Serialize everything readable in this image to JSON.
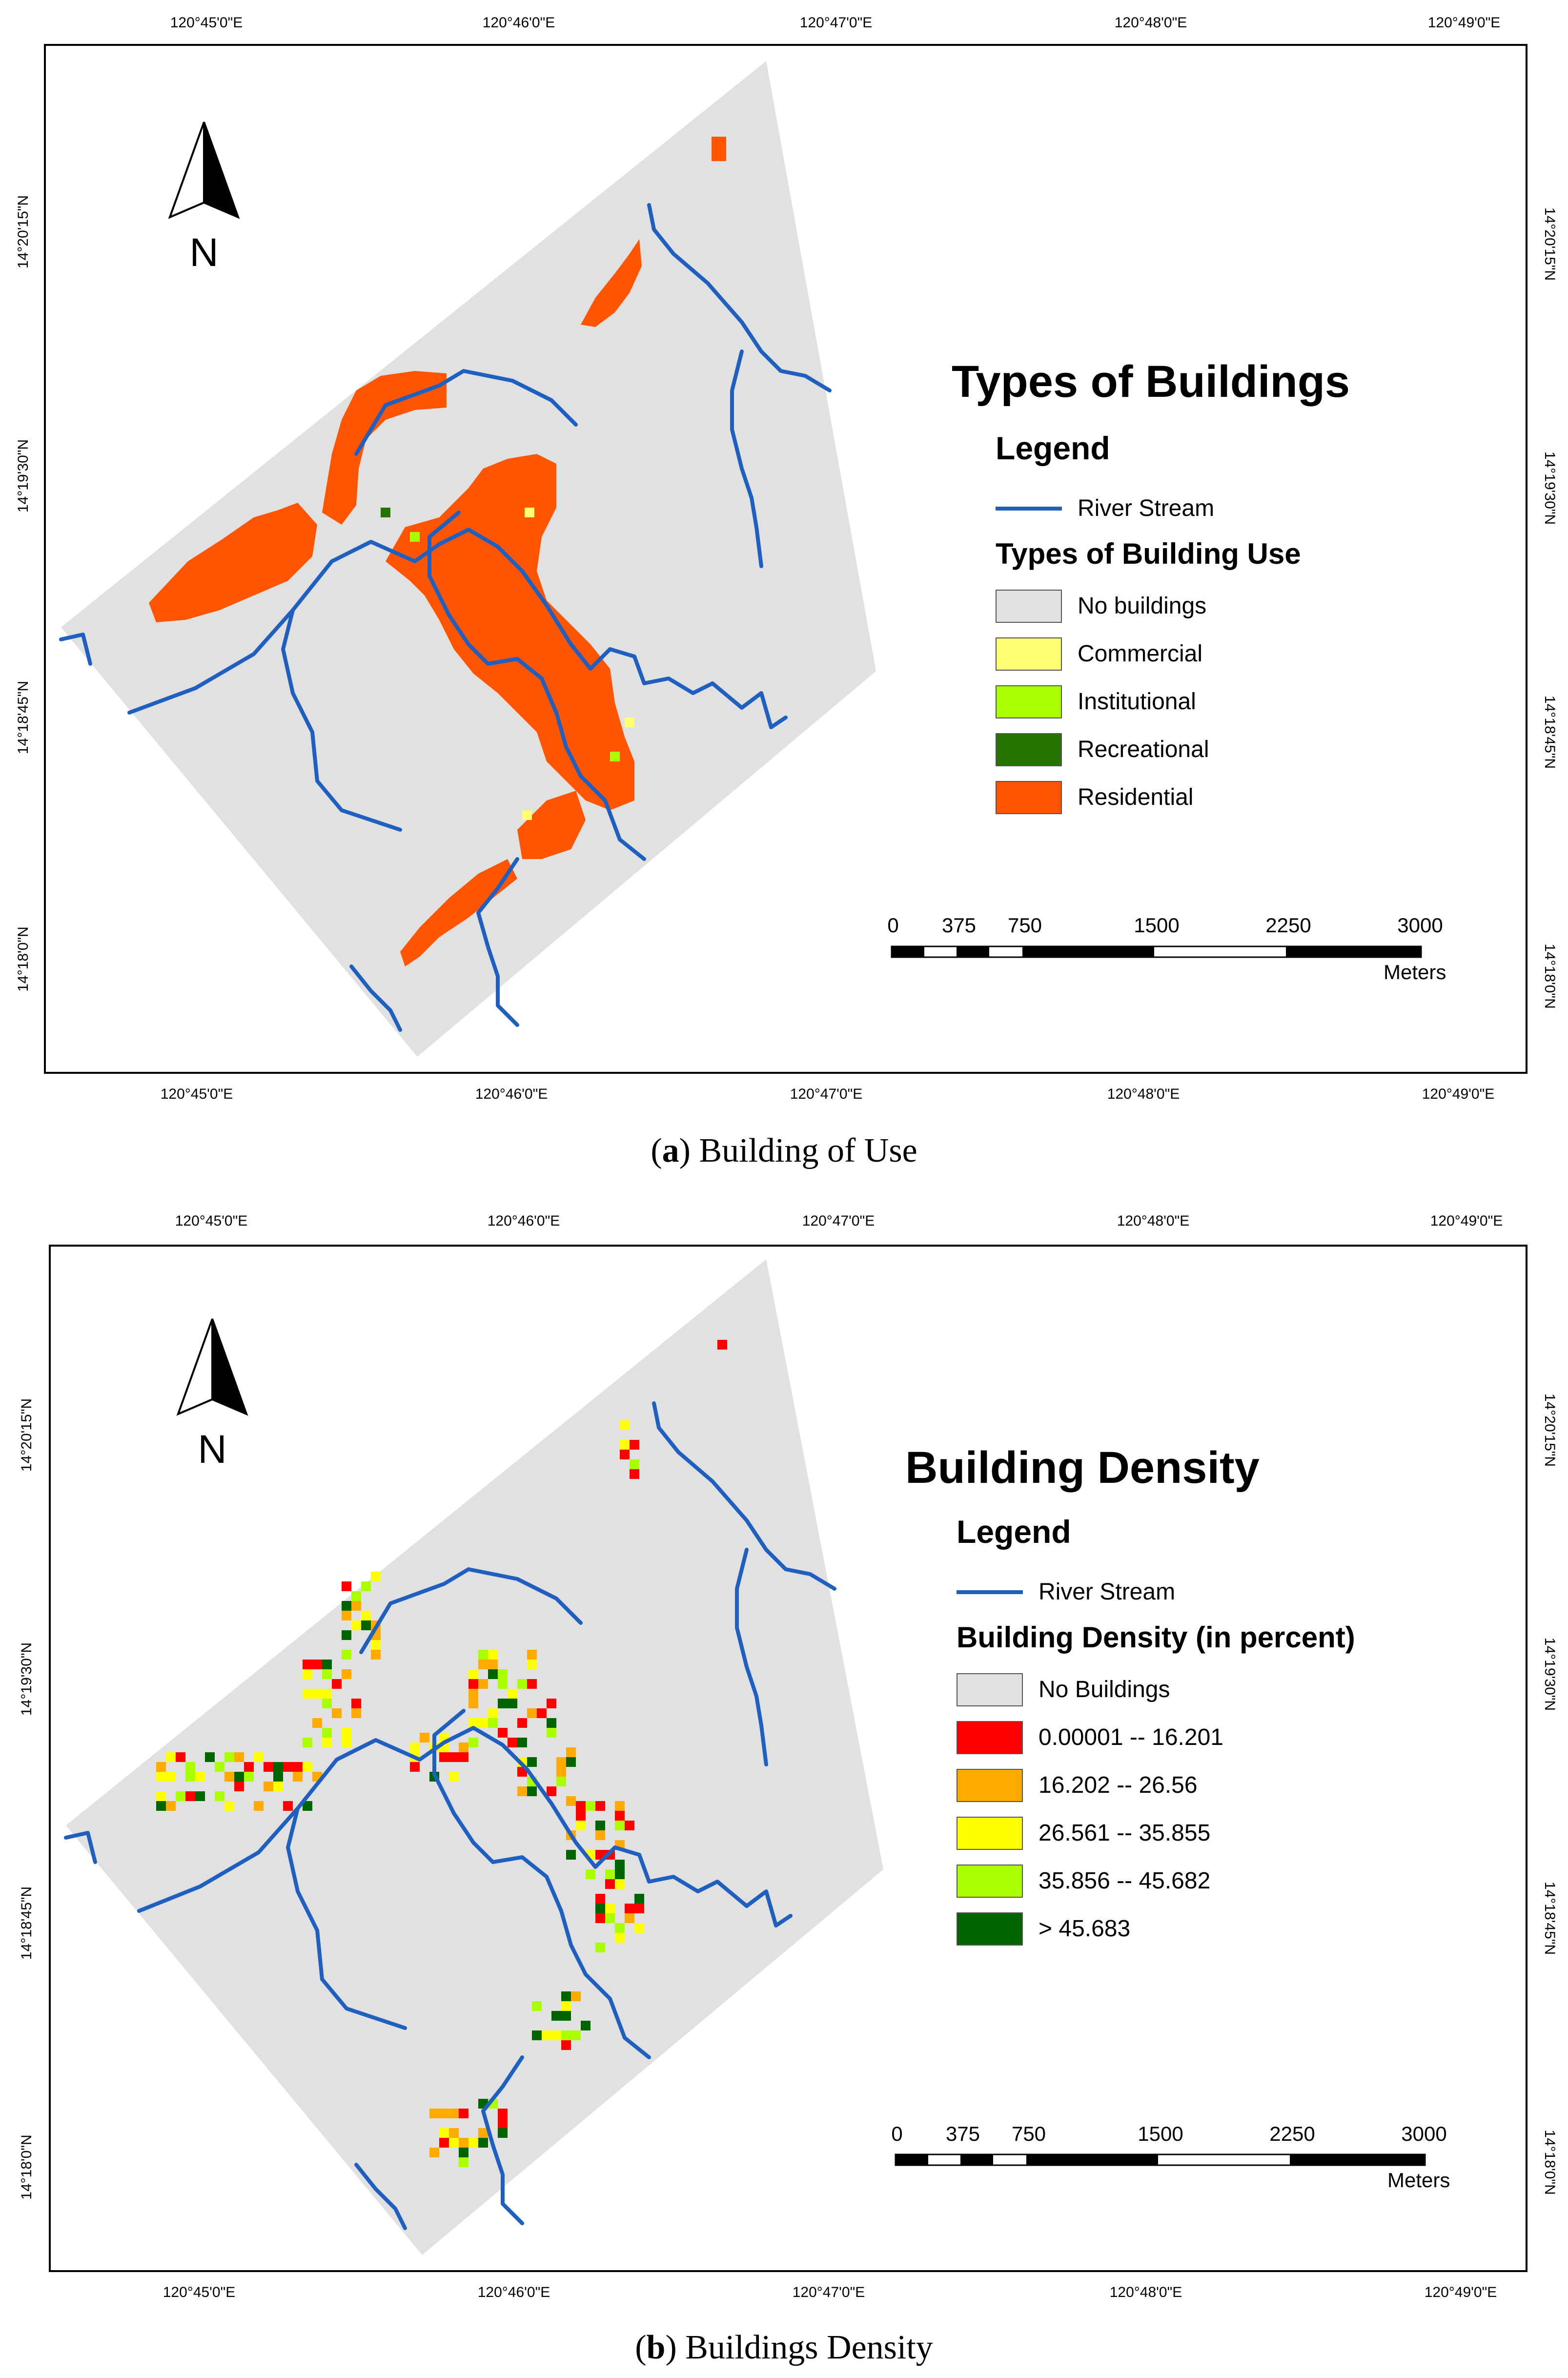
{
  "panels": [
    {
      "id": "a",
      "caption_letter": "a",
      "caption_text": " Building of Use",
      "legend_title": "Types of Buildings",
      "legend_heading": "Legend",
      "river_label": "River Stream",
      "class_title": "Types of Building Use",
      "classes": [
        {
          "label": "No buildings",
          "color": "#e1e1e1"
        },
        {
          "label": "Commercial",
          "color": "#ffff73"
        },
        {
          "label": "Institutional",
          "color": "#aaff00"
        },
        {
          "label": "Recreational",
          "color": "#267300"
        },
        {
          "label": "Residential",
          "color": "#ff5500"
        }
      ],
      "north_label": "N"
    },
    {
      "id": "b",
      "caption_letter": "b",
      "caption_text": " Buildings Density",
      "legend_title": "Building Density",
      "legend_heading": "Legend",
      "river_label": "River Stream",
      "class_title": "Building Density (in percent)",
      "classes": [
        {
          "label": "No Buildings",
          "color": "#e1e1e1"
        },
        {
          "label": "0.00001 -- 16.201",
          "color": "#ff0000"
        },
        {
          "label": "16.202 -- 26.56",
          "color": "#ffaa00"
        },
        {
          "label": "26.561 -- 35.855",
          "color": "#ffff00"
        },
        {
          "label": "35.856 -- 45.682",
          "color": "#aaff00"
        },
        {
          "label": "> 45.683",
          "color": "#006400"
        }
      ],
      "north_label": "N"
    }
  ],
  "longitudes": [
    "120°45'0\"E",
    "120°46'0\"E",
    "120°47'0\"E",
    "120°48'0\"E",
    "120°49'0\"E"
  ],
  "latitudes": [
    "14°20'15\"N",
    "14°19'30\"N",
    "14°18'45\"N",
    "14°18'0\"N"
  ],
  "scale": {
    "labels": [
      "0",
      "375",
      "750",
      "1500",
      "2250",
      "3000"
    ],
    "units": "Meters"
  },
  "colors": {
    "river": "#1f5fbf",
    "study_area": "#e1e1e1",
    "residential": "#ff5500"
  }
}
